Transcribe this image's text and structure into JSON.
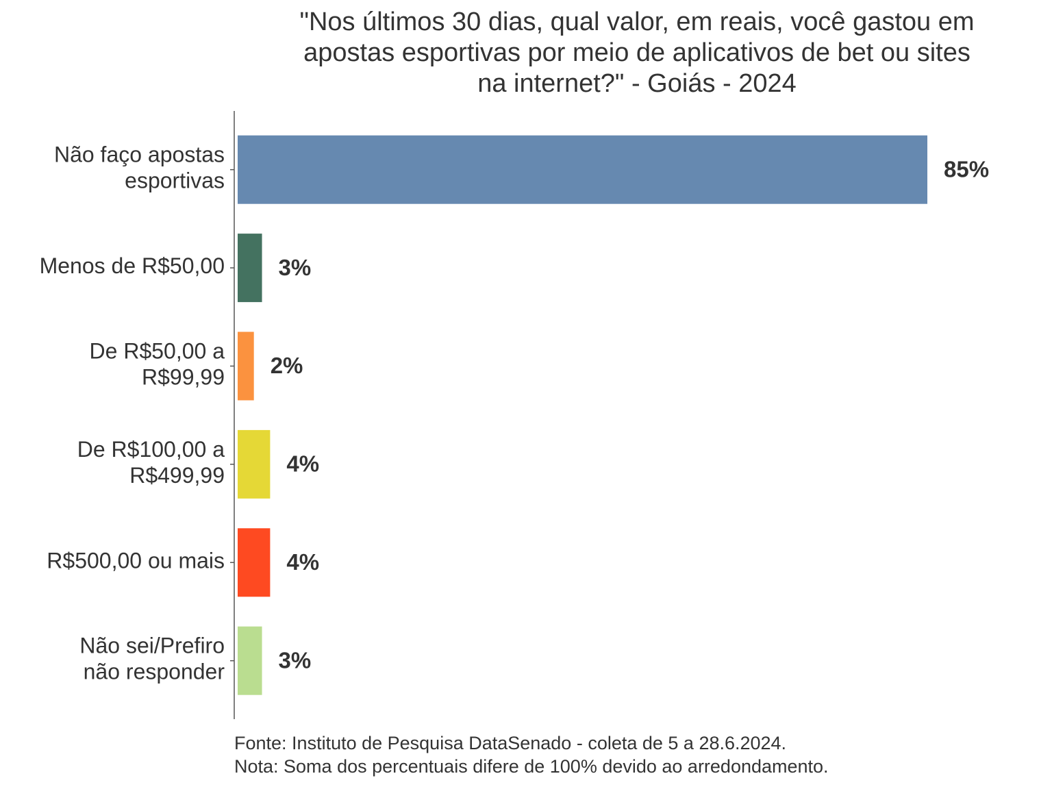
{
  "chart_data": {
    "type": "bar",
    "orientation": "horizontal",
    "title": "\"Nos últimos 30 dias, qual valor, em reais, você gastou em\napostas esportivas por meio de aplicativos de bet ou sites\nna internet?\" - Goiás - 2024",
    "categories": [
      "Não faço apostas\nesportivas",
      "Menos de R$50,00",
      "De R$50,00 a\nR$99,99",
      "De R$100,00 a\nR$499,99",
      "R$500,00 ou mais",
      "Não sei/Prefiro\nnão responder"
    ],
    "values": [
      85,
      3,
      2,
      4,
      4,
      3
    ],
    "value_labels": [
      "85%",
      "3%",
      "2%",
      "4%",
      "4%",
      "3%"
    ],
    "colors": [
      "#6689b0",
      "#447260",
      "#fb923f",
      "#e5d836",
      "#fe4a21",
      "#badd90"
    ],
    "source": "Fonte: Instituto de Pesquisa DataSenado - coleta de 5 a 28.6.2024.",
    "note": "Nota: Soma dos percentuais difere de 100% devido ao arredondamento."
  }
}
